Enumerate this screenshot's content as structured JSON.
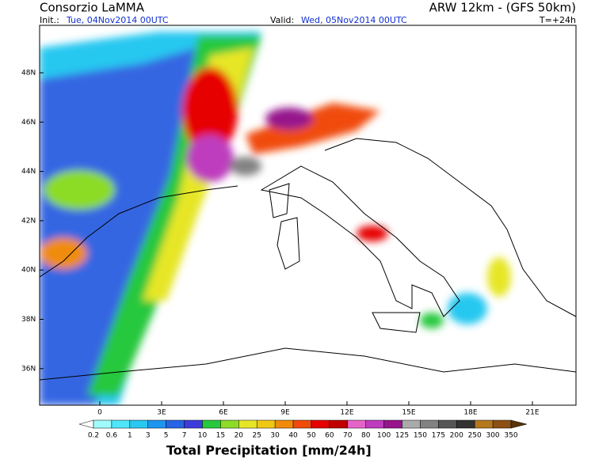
{
  "header": {
    "title": "Consorzio LaMMA",
    "model": "ARW 12km - (GFS 50km)",
    "init_label": "Init.:",
    "init_value": "Tue, 04Nov2014 00UTC",
    "valid_label": "Valid:",
    "valid_value": "Wed, 05Nov2014 00UTC",
    "lead": "T=+24h"
  },
  "map": {
    "lat_ticks": [
      "48N",
      "46N",
      "44N",
      "42N",
      "40N",
      "38N",
      "36N"
    ],
    "lon_ticks": [
      "0",
      "3E",
      "6E",
      "9E",
      "12E",
      "15E",
      "18E",
      "21E"
    ]
  },
  "legend": {
    "title": "Total Precipitation [mm/24h]",
    "levels": [
      0.2,
      0.6,
      1,
      3,
      5,
      7,
      10,
      15,
      20,
      25,
      30,
      40,
      50,
      60,
      70,
      80,
      100,
      125,
      150,
      175,
      200,
      250,
      300,
      350
    ],
    "colors": [
      "#ffffff",
      "#a0fcfc",
      "#50e6fa",
      "#28c8f0",
      "#1e96f0",
      "#2864e6",
      "#3c3cdc",
      "#28c83c",
      "#8cdc28",
      "#e6e628",
      "#f0c814",
      "#f08c0a",
      "#f04b0a",
      "#e60000",
      "#c00000",
      "#e664c8",
      "#be3cbe",
      "#96148c",
      "#aaaaaa",
      "#828282",
      "#555555",
      "#323232",
      "#b4781e",
      "#8c5014",
      "#5a320a"
    ]
  }
}
